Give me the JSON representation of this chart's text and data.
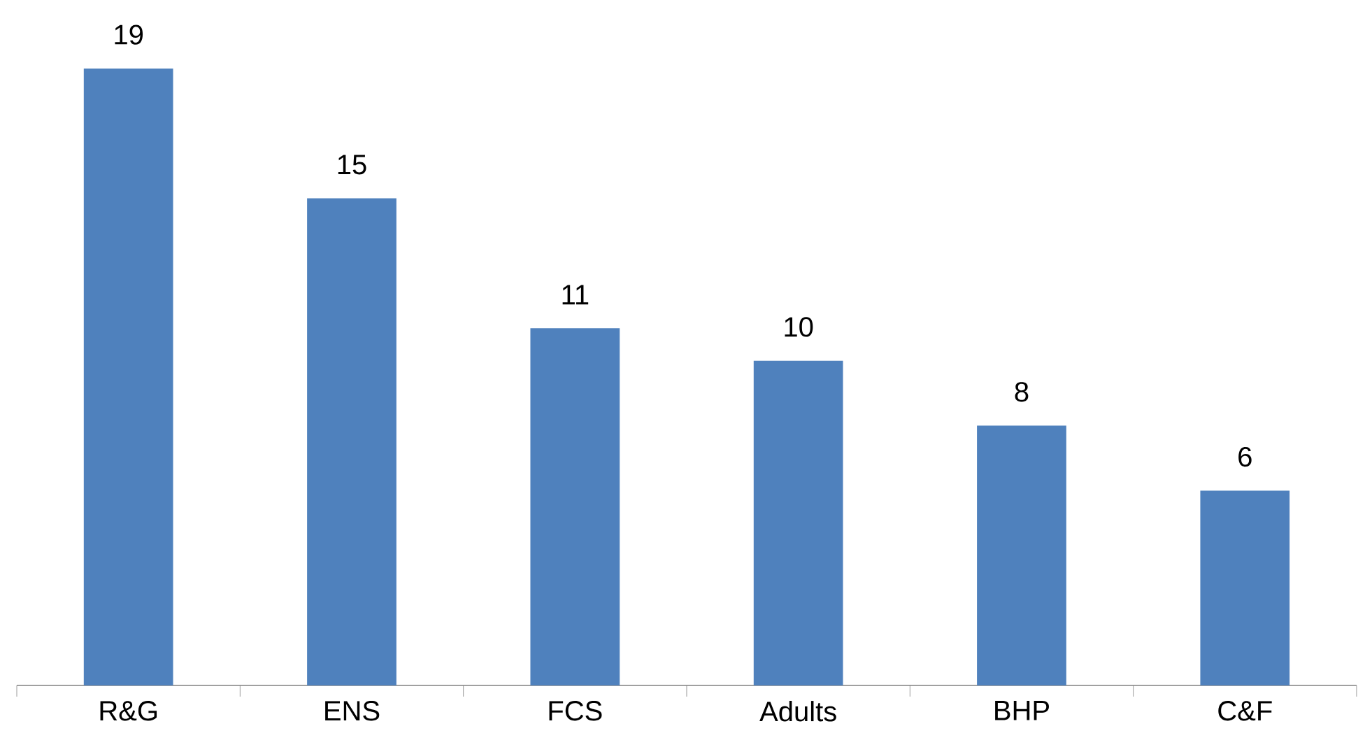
{
  "chart_data": {
    "type": "bar",
    "categories": [
      "R&G",
      "ENS",
      "FCS",
      "Adults",
      "BHP",
      "C&F"
    ],
    "values": [
      19,
      15,
      11,
      10,
      8,
      6
    ],
    "color": "#4f81bd",
    "data_labels": true
  }
}
